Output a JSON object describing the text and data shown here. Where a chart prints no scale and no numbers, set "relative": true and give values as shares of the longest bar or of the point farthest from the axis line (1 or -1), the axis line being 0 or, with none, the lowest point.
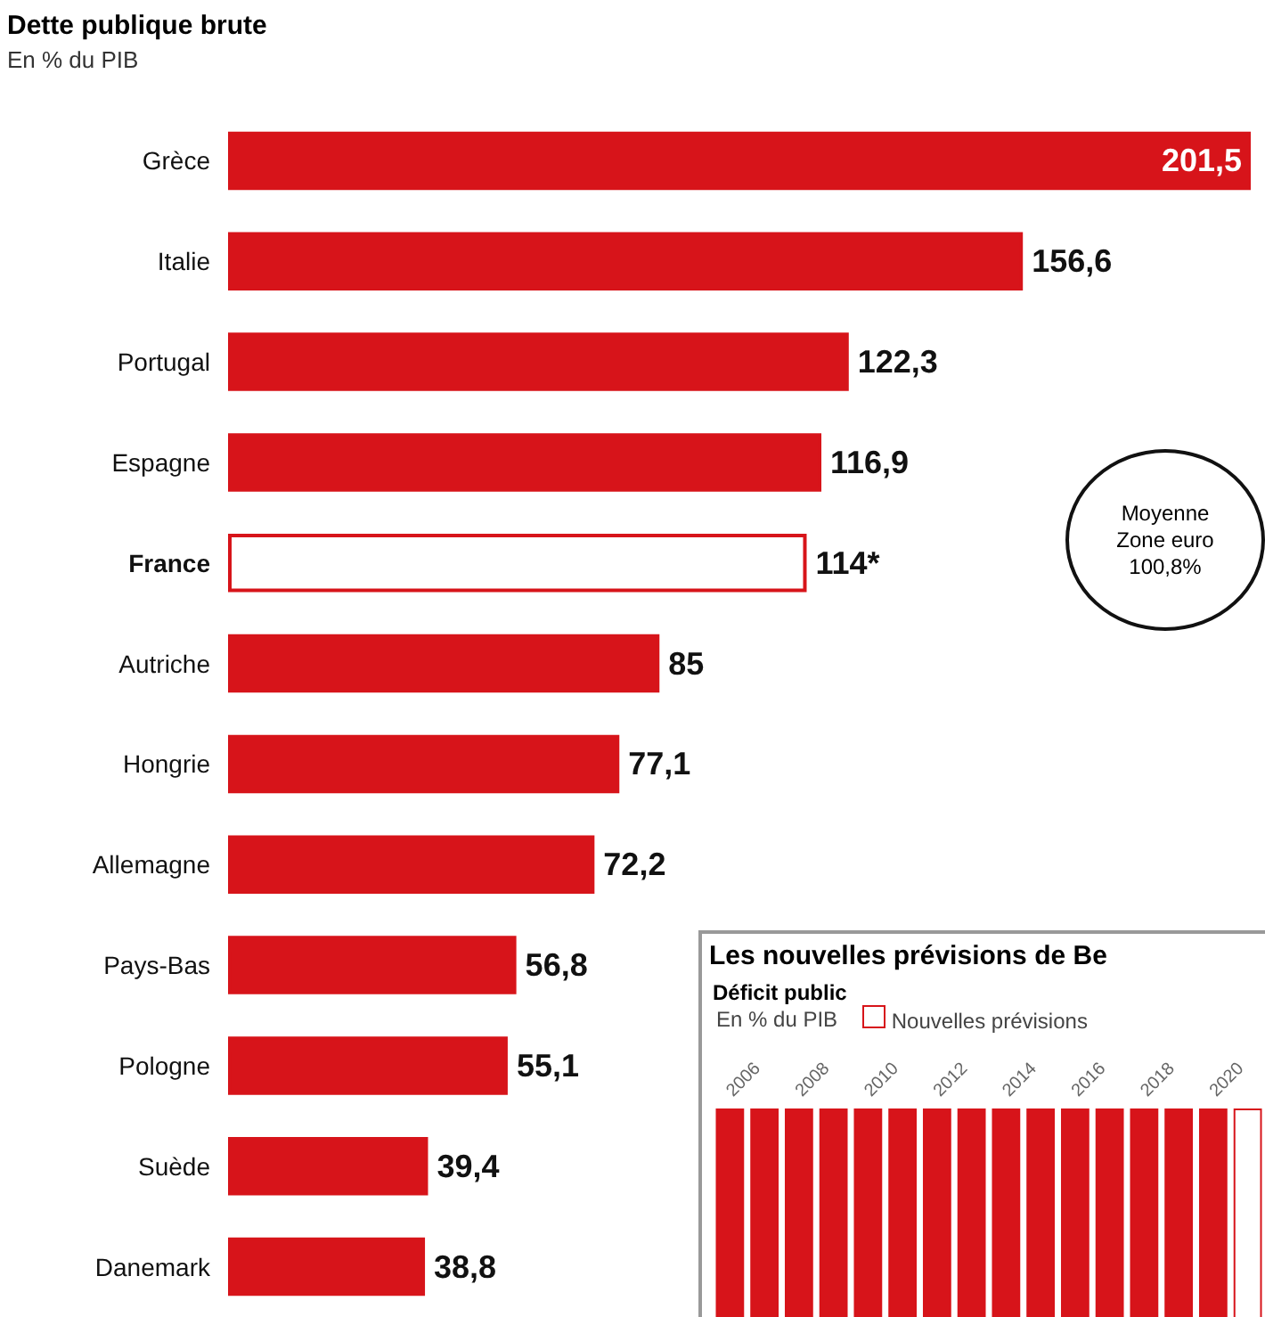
{
  "chart_data": [
    {
      "type": "bar",
      "orientation": "horizontal",
      "title": "Dette publique brute",
      "subtitle": "En % du PIB",
      "categories": [
        "Grèce",
        "Italie",
        "Portugal",
        "Espagne",
        "France",
        "Autriche",
        "Hongrie",
        "Allemagne",
        "Pays-Bas",
        "Pologne",
        "Suède",
        "Danemark"
      ],
      "values": [
        201.5,
        156.6,
        122.3,
        116.9,
        114,
        85,
        77.1,
        72.2,
        56.8,
        55.1,
        39.4,
        38.8
      ],
      "value_labels": [
        "201,5",
        "156,6",
        "122,3",
        "116,9",
        "114*",
        "85",
        "77,1",
        "72,2",
        "56,8",
        "55,1",
        "39,4",
        "38,8"
      ],
      "color": "#d7141a",
      "colors": [
        "#d7141a",
        "#d7141a",
        "#d7141a",
        "#d7141a",
        "#ffffff",
        "#d7141a",
        "#d7141a",
        "#d7141a",
        "#d7141a",
        "#d7141a",
        "#d7141a",
        "#d7141a"
      ],
      "annotations": [
        "Moyenne Zone euro 100,8%"
      ]
    },
    {
      "type": "bar",
      "relative": true,
      "title": "Les nouvelles prévisions de Be",
      "subtitle": "Déficit public",
      "categories": [
        "2006",
        null,
        "2008",
        null,
        "2010",
        null,
        "2012",
        null,
        "2014",
        null,
        "2016",
        null,
        "2018",
        null,
        "2020",
        null
      ],
      "values": [
        -1,
        -1,
        -1,
        -1,
        -1,
        -1,
        -1,
        -1,
        -1,
        -1,
        -1,
        -1,
        -1,
        -1,
        -1,
        -1
      ],
      "color": "#d7141a",
      "colors": [
        "#d7141a",
        "#d7141a",
        "#d7141a",
        "#d7141a",
        "#d7141a",
        "#d7141a",
        "#d7141a",
        "#d7141a",
        "#d7141a",
        "#d7141a",
        "#d7141a",
        "#d7141a",
        "#d7141a",
        "#d7141a",
        "#d7141a",
        "#ffffff"
      ],
      "annotations": [
        "En % du PIB",
        "Nouvelles prévisions"
      ]
    }
  ]
}
